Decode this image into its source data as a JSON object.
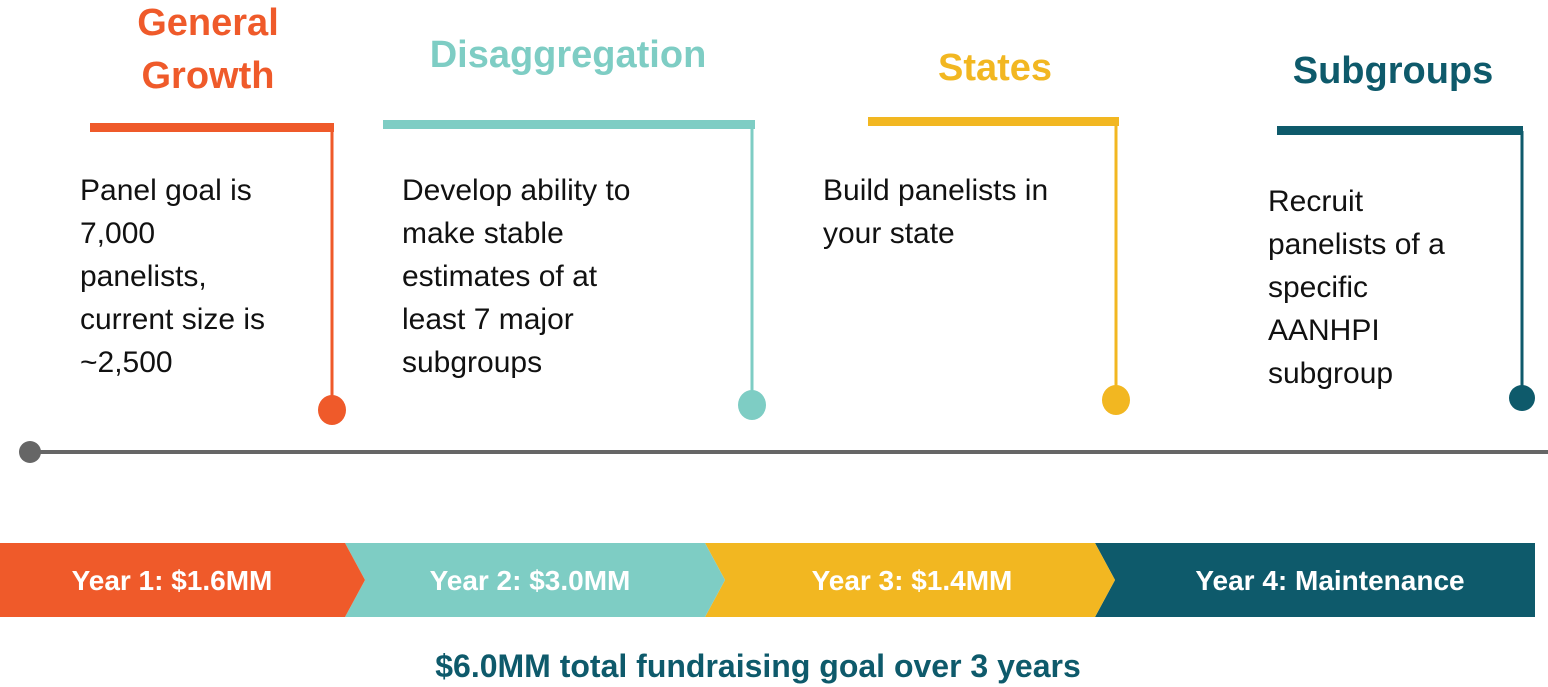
{
  "columns": [
    {
      "title": [
        "General",
        "Growth"
      ],
      "description": [
        "Panel goal is",
        "7,000",
        "panelists,",
        "current size is",
        "~2,500"
      ]
    },
    {
      "title": [
        "Disaggregation"
      ],
      "description": [
        "Develop ability to",
        "make stable",
        "estimates of at",
        "least 7 major",
        "subgroups"
      ]
    },
    {
      "title": [
        "States"
      ],
      "description": [
        "Build panelists in",
        "your state"
      ]
    },
    {
      "title": [
        "Subgroups"
      ],
      "description": [
        "Recruit",
        "panelists of a",
        "specific",
        "AANHPI",
        "subgroup"
      ]
    }
  ],
  "years": [
    "Year 1: $1.6MM",
    "Year 2: $3.0MM",
    "Year 3: $1.4MM",
    "Year 4: Maintenance"
  ],
  "footer": "$6.0MM total fundraising goal over 3 years"
}
